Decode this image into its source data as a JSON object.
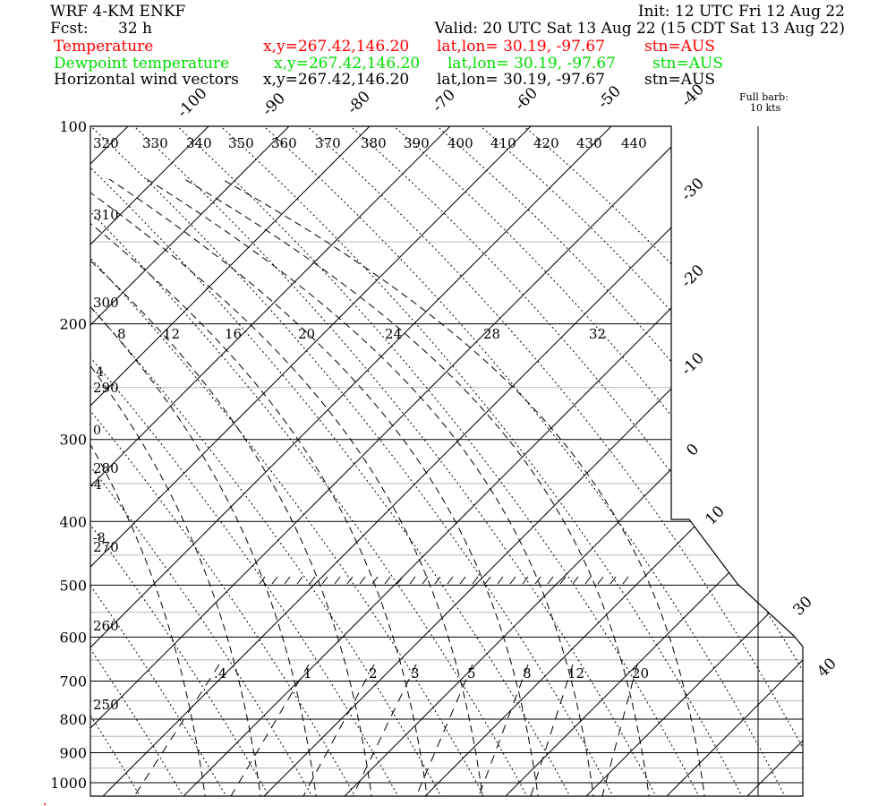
{
  "header": {
    "model": "WRF 4-KM ENKF",
    "init": "Init: 12 UTC Fri 12 Aug 22",
    "fcst_label": "Fcst:",
    "fcst_value": "32 h",
    "valid": "Valid: 20 UTC Sat 13 Aug 22 (15 CDT Sat 13 Aug 22)",
    "lines": [
      {
        "name": "Temperature",
        "loc": "x,y=267.42,146.20",
        "latlon": "lat,lon= 30.19, -97.67",
        "stn": "stn=AUS",
        "color": "#ff0000"
      },
      {
        "name": "Dewpoint temperature",
        "loc": "x,y=267.42,146.20",
        "latlon": "lat,lon= 30.19, -97.67",
        "stn": "stn=AUS",
        "color": "#00dd00"
      },
      {
        "name": "Horizontal wind vectors",
        "loc": "x,y=267.42,146.20",
        "latlon": "lat,lon= 30.19, -97.67",
        "stn": "stn=AUS",
        "color": "#000000"
      }
    ]
  },
  "barb_note": {
    "line1": "Full barb:",
    "line2": "10 kts"
  },
  "chart_data": {
    "type": "skew-t log-p diagram",
    "pressure_levels_hPa": [
      100,
      200,
      300,
      400,
      500,
      600,
      700,
      800,
      900,
      1000
    ],
    "isotherm_labels_C": [
      -100,
      -90,
      -80,
      -70,
      -60,
      -50,
      -40,
      -30,
      -20,
      -10,
      0,
      10,
      30,
      40
    ],
    "theta_labels_K_top": [
      320,
      330,
      340,
      350,
      360,
      370,
      380,
      390,
      400,
      410,
      420,
      430,
      440
    ],
    "theta_labels_K_left": [
      310,
      300,
      290,
      280,
      270,
      260,
      250
    ],
    "theta_e_labels_C": [
      8,
      12,
      16,
      20,
      24,
      28,
      32
    ],
    "left_temp_labels_C": [
      4,
      0,
      -4,
      -8
    ],
    "mixing_ratio_labels_gkg": [
      ".4",
      "1",
      "2",
      "3",
      "5",
      "8",
      "12",
      "20"
    ],
    "temperature_series": [],
    "dewpoint_series": [],
    "wind_series": []
  },
  "colors": {
    "axes": "#000000",
    "grid_light": "#c0c0c0",
    "temperature": "#ff0000",
    "dewpoint": "#00dd00"
  }
}
